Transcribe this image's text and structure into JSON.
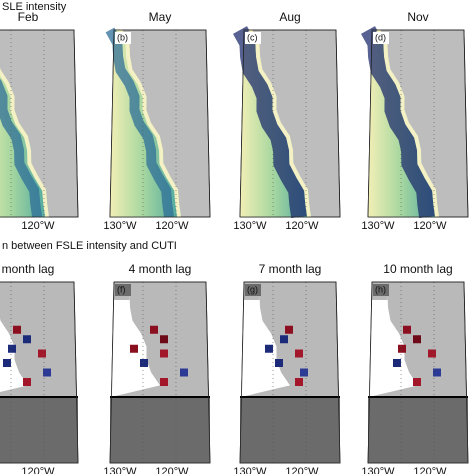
{
  "top": {
    "title": "SLE intensity",
    "panels": [
      {
        "title": "Feb",
        "letter": null,
        "xlabels": [
          "120°W"
        ]
      },
      {
        "title": "May",
        "letter": "(b)",
        "xlabels": [
          "130°W",
          "120°W"
        ]
      },
      {
        "title": "Aug",
        "letter": "(c)",
        "xlabels": [
          "130°W",
          "120°W"
        ]
      },
      {
        "title": "Nov",
        "letter": "(d)",
        "xlabels": [
          "130°W",
          "120°W"
        ]
      }
    ]
  },
  "bottom": {
    "title": "n between FSLE intensity and CUTI",
    "panels": [
      {
        "title": "month lag",
        "letter": null,
        "xlabels": [
          "120°W"
        ]
      },
      {
        "title": "4 month lag",
        "letter": "(f)",
        "xlabels": [
          "130°W",
          "120°W"
        ]
      },
      {
        "title": "7 month lag",
        "letter": "(g)",
        "xlabels": [
          "130°W",
          "120°W"
        ]
      },
      {
        "title": "10 month lag",
        "letter": "(h)",
        "xlabels": [
          "130°W",
          "120°W"
        ]
      }
    ]
  }
}
